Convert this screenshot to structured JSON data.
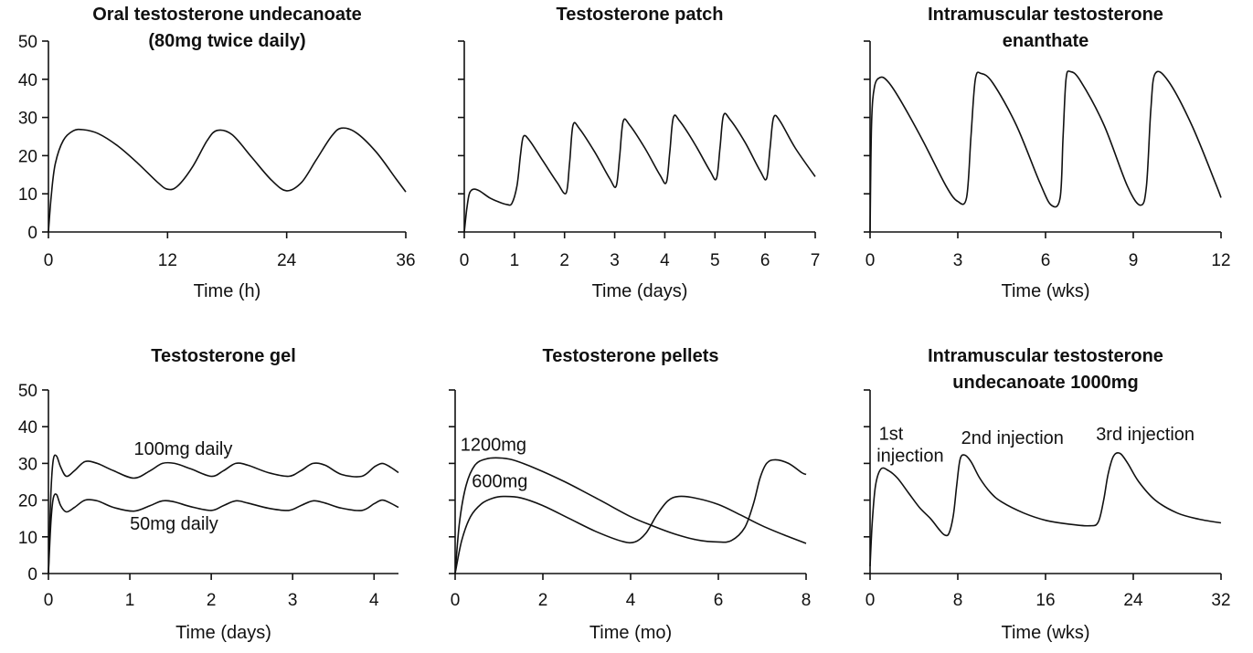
{
  "chart_data": [
    {
      "type": "line",
      "title_lines": [
        "Oral testosterone undecanoate",
        "(80mg twice daily)"
      ],
      "xlabel": "Time (h)",
      "xlim": [
        0,
        36
      ],
      "ylim": [
        0,
        50
      ],
      "xticks": [
        0,
        12,
        24,
        36
      ],
      "yticks": [
        0,
        10,
        20,
        30,
        40,
        50
      ],
      "show_ytick_labels": true,
      "series": [
        {
          "x": [
            0,
            0.3,
            0.7,
            1.5,
            2.5,
            3.5,
            5,
            7,
            9,
            11,
            12,
            13,
            14.5,
            16,
            17,
            18.5,
            20.5,
            22.5,
            24,
            25.5,
            27,
            28.5,
            29.5,
            31,
            33,
            35,
            36
          ],
          "y": [
            0,
            10,
            18,
            24,
            26.5,
            26.8,
            25.8,
            22.5,
            18,
            13,
            11.2,
            12,
            17,
            24,
            26.6,
            25.5,
            19.5,
            13.5,
            10.8,
            13,
            19,
            25,
            27.2,
            26,
            21,
            14,
            10.5
          ]
        }
      ],
      "annotations": []
    },
    {
      "type": "line",
      "title_lines": [
        "Testosterone patch"
      ],
      "xlabel": "Time (days)",
      "xlim": [
        0,
        7
      ],
      "ylim": [
        0,
        50
      ],
      "xticks": [
        0,
        1,
        2,
        3,
        4,
        5,
        6,
        7
      ],
      "yticks": [
        0,
        10,
        20,
        30,
        40,
        50
      ],
      "show_ytick_labels": false,
      "series": [
        {
          "x": [
            0,
            0.05,
            0.1,
            0.18,
            0.3,
            0.5,
            0.7,
            0.85,
            0.95,
            1.05,
            1.12,
            1.18,
            1.3,
            1.55,
            1.85,
            2.03,
            2.1,
            2.17,
            2.3,
            2.6,
            2.9,
            3.03,
            3.1,
            3.17,
            3.3,
            3.6,
            3.9,
            4.03,
            4.1,
            4.17,
            4.3,
            4.6,
            4.9,
            5.03,
            5.1,
            5.17,
            5.3,
            5.6,
            5.9,
            6.03,
            6.1,
            6.17,
            6.3,
            6.6,
            7.0
          ],
          "y": [
            0,
            6,
            10,
            11.2,
            10.8,
            9,
            7.8,
            7.2,
            7.5,
            12,
            20,
            25,
            24,
            19,
            13,
            10.2,
            18,
            28,
            27,
            21,
            14,
            12,
            20,
            29,
            28,
            22,
            15,
            13,
            21,
            30,
            29,
            23,
            16,
            14,
            22,
            30.5,
            29.5,
            23.5,
            16,
            14,
            22,
            30,
            29,
            22,
            14.5
          ]
        }
      ],
      "annotations": []
    },
    {
      "type": "line",
      "title_lines": [
        "Intramuscular testosterone",
        "enanthate"
      ],
      "xlabel": "Time (wks)",
      "xlim": [
        0,
        12
      ],
      "ylim": [
        0,
        50
      ],
      "xticks": [
        0,
        3,
        6,
        9,
        12
      ],
      "yticks": [
        0,
        10,
        20,
        30,
        40,
        50
      ],
      "show_ytick_labels": false,
      "series": [
        {
          "x": [
            0,
            0.05,
            0.15,
            0.35,
            0.6,
            1.0,
            1.8,
            2.6,
            3.0,
            3.3,
            3.45,
            3.6,
            3.8,
            4.2,
            5.0,
            5.8,
            6.2,
            6.5,
            6.6,
            6.7,
            6.85,
            7.2,
            8.0,
            8.8,
            9.25,
            9.45,
            9.6,
            9.75,
            10.2,
            11.0,
            11.8,
            12.0
          ],
          "y": [
            0,
            28,
            38,
            40.5,
            39.5,
            35,
            24,
            12,
            8,
            9,
            25,
            40,
            41.5,
            39,
            28,
            13,
            7,
            9,
            25,
            40,
            42,
            39.5,
            28,
            12,
            7,
            12,
            32,
            41.5,
            39.5,
            28,
            13,
            9
          ]
        }
      ],
      "annotations": []
    },
    {
      "type": "line",
      "title_lines": [
        "Testosterone gel"
      ],
      "xlabel": "Time (days)",
      "xlim": [
        0,
        4.3
      ],
      "ylim": [
        0,
        50
      ],
      "xticks": [
        0,
        1,
        2,
        3,
        4
      ],
      "yticks": [
        0,
        10,
        20,
        30,
        40,
        50
      ],
      "show_ytick_labels": true,
      "series": [
        {
          "name": "100mg daily",
          "x": [
            0,
            0.03,
            0.06,
            0.1,
            0.15,
            0.22,
            0.32,
            0.45,
            0.6,
            0.8,
            1.05,
            1.25,
            1.4,
            1.55,
            1.75,
            2.0,
            2.15,
            2.3,
            2.45,
            2.7,
            2.95,
            3.1,
            3.25,
            3.4,
            3.6,
            3.85,
            4.0,
            4.1,
            4.2,
            4.3
          ],
          "y": [
            0,
            22,
            31,
            32,
            29,
            26.5,
            28,
            30.5,
            30,
            28,
            26,
            28,
            30,
            30,
            28.5,
            26.5,
            28,
            30,
            29.5,
            27.5,
            26.5,
            28,
            30,
            29.5,
            27,
            26.5,
            29,
            30,
            29,
            27.5
          ]
        },
        {
          "name": "50mg daily",
          "x": [
            0,
            0.03,
            0.06,
            0.1,
            0.15,
            0.22,
            0.32,
            0.45,
            0.6,
            0.8,
            1.05,
            1.25,
            1.4,
            1.55,
            1.75,
            2.0,
            2.15,
            2.3,
            2.45,
            2.7,
            2.95,
            3.1,
            3.25,
            3.4,
            3.6,
            3.85,
            4.0,
            4.1,
            4.2,
            4.3
          ],
          "y": [
            0,
            14,
            20.5,
            21.5,
            18.5,
            16.8,
            18,
            20,
            19.8,
            18,
            17,
            18.5,
            19.8,
            19.5,
            18.2,
            17.2,
            18.5,
            19.8,
            19.2,
            17.8,
            17.2,
            18.5,
            19.8,
            19.2,
            17.8,
            17.2,
            19,
            20,
            19.2,
            18
          ]
        }
      ],
      "annotations": [
        {
          "text": "100mg daily",
          "x": 1.05,
          "y": 32.3
        },
        {
          "text": "50mg daily",
          "x": 1.0,
          "y": 12.0
        }
      ]
    },
    {
      "type": "line",
      "title_lines": [
        "Testosterone pellets"
      ],
      "xlabel": "Time (mo)",
      "xlim": [
        0,
        8
      ],
      "ylim": [
        0,
        50
      ],
      "xticks": [
        0,
        2,
        4,
        6,
        8
      ],
      "yticks": [
        0,
        10,
        20,
        30,
        40,
        50
      ],
      "show_ytick_labels": false,
      "series": [
        {
          "name": "1200mg",
          "x": [
            0,
            0.1,
            0.25,
            0.45,
            0.7,
            1.0,
            1.3,
            1.8,
            2.5,
            3.3,
            4.0,
            4.5,
            5.0,
            5.5,
            6.0,
            6.3,
            6.6,
            6.8,
            6.95,
            7.1,
            7.3,
            7.6,
            7.9,
            8.0
          ],
          "y": [
            0,
            14,
            24,
            29.5,
            31.2,
            31.5,
            31,
            28.8,
            25,
            20,
            15.5,
            13,
            10.8,
            9.2,
            8.6,
            9,
            12.5,
            19,
            26,
            30,
            31,
            30,
            27.5,
            27
          ]
        },
        {
          "name": "600mg",
          "x": [
            0,
            0.15,
            0.35,
            0.6,
            0.85,
            1.1,
            1.5,
            2.0,
            2.6,
            3.2,
            3.8,
            4.1,
            4.35,
            4.6,
            4.85,
            5.1,
            5.5,
            6.0,
            6.5,
            7.0,
            7.5,
            8.0
          ],
          "y": [
            0,
            9,
            15.5,
            19,
            20.5,
            21,
            20.6,
            18.5,
            15,
            11.5,
            8.8,
            8.6,
            11,
            16,
            19.8,
            21,
            20.5,
            18.8,
            16,
            13,
            10.5,
            8.2
          ]
        }
      ],
      "annotations": [
        {
          "text": "1200mg",
          "x": 0.12,
          "y": 33.5
        },
        {
          "text": "600mg",
          "x": 0.38,
          "y": 23.5
        }
      ]
    },
    {
      "type": "line",
      "title_lines": [
        "Intramuscular testosterone",
        "undecanoate 1000mg"
      ],
      "xlabel": "Time (wks)",
      "xlim": [
        0,
        32
      ],
      "ylim": [
        0,
        50
      ],
      "xticks": [
        0,
        8,
        16,
        24,
        32
      ],
      "yticks": [
        0,
        10,
        20,
        30,
        40,
        50
      ],
      "show_ytick_labels": false,
      "series": [
        {
          "x": [
            0,
            0.2,
            0.5,
            1.0,
            1.7,
            2.5,
            3.5,
            4.5,
            5.5,
            6.3,
            6.8,
            7.2,
            7.6,
            7.9,
            8.2,
            8.6,
            9.2,
            10.0,
            11.0,
            12.0,
            14.0,
            16.0,
            18.0,
            20.0,
            20.8,
            21.3,
            21.7,
            22.2,
            22.8,
            23.5,
            24.5,
            26.0,
            28.0,
            30.0,
            32.0
          ],
          "y": [
            2,
            14,
            24,
            28.5,
            28,
            26,
            22,
            18,
            15,
            12,
            10.5,
            11,
            16,
            24,
            31,
            32.3,
            30.5,
            26,
            22,
            19.5,
            16.5,
            14.5,
            13.5,
            13,
            14,
            20,
            27,
            32,
            32.7,
            30,
            25,
            20,
            16.5,
            14.8,
            13.8
          ]
        }
      ],
      "annotations": [
        {
          "text": "1st",
          "x": 0.8,
          "y": 36.5
        },
        {
          "text": "injection",
          "x": 0.6,
          "y": 30.5
        },
        {
          "text": "2nd injection",
          "x": 8.3,
          "y": 35.3
        },
        {
          "text": "3rd injection",
          "x": 20.6,
          "y": 36.3
        }
      ]
    }
  ]
}
